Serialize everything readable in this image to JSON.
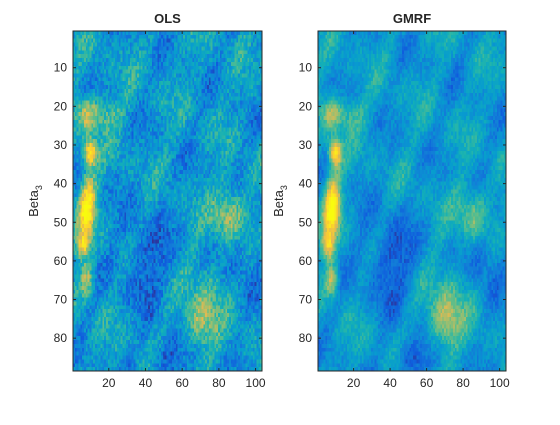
{
  "chart_data": [
    {
      "type": "heatmap",
      "title": "OLS",
      "ylabel": "Beta",
      "ylabel_subscript": "3",
      "xlabel": "",
      "xlim": [
        1,
        103
      ],
      "ylim": [
        1,
        88
      ],
      "y_reversed": true,
      "xticks": [
        20,
        40,
        60,
        80,
        100
      ],
      "yticks": [
        10,
        20,
        30,
        40,
        50,
        60,
        70,
        80
      ],
      "colormap": "parula",
      "noise": 0.5,
      "hotspots": [
        {
          "x": 10,
          "y": 32,
          "amp": 1.0,
          "sx": 2.5,
          "sy": 2.5
        },
        {
          "x": 8,
          "y": 48,
          "amp": 0.85,
          "sx": 3,
          "sy": 4
        },
        {
          "x": 6,
          "y": 56,
          "amp": 0.8,
          "sx": 2.5,
          "sy": 2.5
        },
        {
          "x": 9,
          "y": 42,
          "amp": 0.55,
          "sx": 3,
          "sy": 4
        },
        {
          "x": 8,
          "y": 65,
          "amp": 0.6,
          "sx": 2.5,
          "sy": 3
        },
        {
          "x": 8,
          "y": 22,
          "amp": 0.55,
          "sx": 4,
          "sy": 3
        },
        {
          "x": 18,
          "y": 22,
          "amp": 0.35,
          "sx": 6,
          "sy": 3
        },
        {
          "x": 85,
          "y": 48,
          "amp": 0.55,
          "sx": 6,
          "sy": 5
        },
        {
          "x": 70,
          "y": 76,
          "amp": 0.5,
          "sx": 6,
          "sy": 5
        },
        {
          "x": 76,
          "y": 66,
          "amp": 0.25,
          "sx": 8,
          "sy": 6
        },
        {
          "x": 40,
          "y": 60,
          "amp": -0.3,
          "sx": 10,
          "sy": 8
        },
        {
          "x": 52,
          "y": 86,
          "amp": -0.35,
          "sx": 6,
          "sy": 4
        },
        {
          "x": 90,
          "y": 60,
          "amp": -0.25,
          "sx": 8,
          "sy": 6
        }
      ]
    },
    {
      "type": "heatmap",
      "title": "GMRF",
      "ylabel": "Beta",
      "ylabel_subscript": "3",
      "xlabel": "",
      "xlim": [
        1,
        103
      ],
      "ylim": [
        1,
        88
      ],
      "y_reversed": true,
      "xticks": [
        20,
        40,
        60,
        80,
        100
      ],
      "yticks": [
        10,
        20,
        30,
        40,
        50,
        60,
        70,
        80
      ],
      "colormap": "parula",
      "noise": 0.3,
      "hotspots": [
        {
          "x": 10,
          "y": 32,
          "amp": 1.0,
          "sx": 2.5,
          "sy": 2.5
        },
        {
          "x": 8,
          "y": 48,
          "amp": 0.9,
          "sx": 3,
          "sy": 4
        },
        {
          "x": 6,
          "y": 56,
          "amp": 0.8,
          "sx": 2.5,
          "sy": 2.5
        },
        {
          "x": 9,
          "y": 42,
          "amp": 0.55,
          "sx": 3,
          "sy": 4
        },
        {
          "x": 8,
          "y": 65,
          "amp": 0.6,
          "sx": 2.5,
          "sy": 3
        },
        {
          "x": 8,
          "y": 22,
          "amp": 0.5,
          "sx": 4,
          "sy": 3
        },
        {
          "x": 18,
          "y": 22,
          "amp": 0.3,
          "sx": 6,
          "sy": 3
        },
        {
          "x": 85,
          "y": 48,
          "amp": 0.45,
          "sx": 6,
          "sy": 5
        },
        {
          "x": 70,
          "y": 76,
          "amp": 0.55,
          "sx": 6,
          "sy": 5
        },
        {
          "x": 76,
          "y": 66,
          "amp": 0.25,
          "sx": 8,
          "sy": 6
        },
        {
          "x": 40,
          "y": 60,
          "amp": -0.35,
          "sx": 10,
          "sy": 8
        },
        {
          "x": 52,
          "y": 86,
          "amp": -0.4,
          "sx": 6,
          "sy": 4
        },
        {
          "x": 90,
          "y": 60,
          "amp": -0.3,
          "sx": 8,
          "sy": 6
        }
      ]
    }
  ]
}
